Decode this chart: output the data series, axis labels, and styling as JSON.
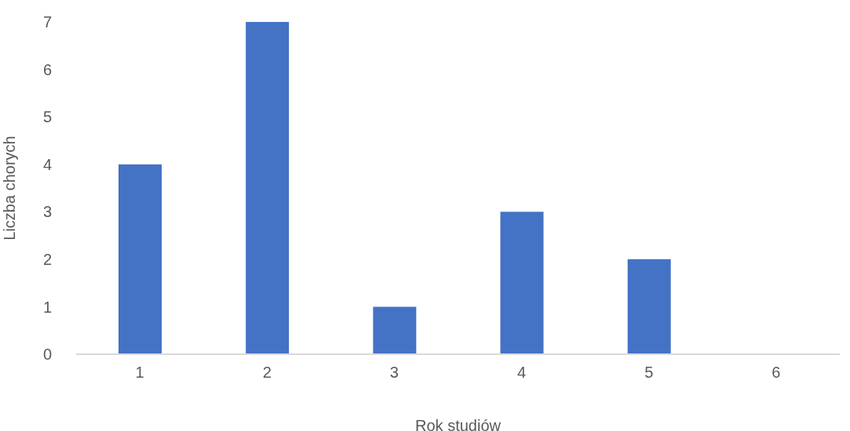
{
  "chart_data": {
    "type": "bar",
    "xlabel": "Rok studiów",
    "ylabel": "Liczba chorych",
    "categories": [
      "1",
      "2",
      "3",
      "4",
      "5",
      "6"
    ],
    "values": [
      4,
      7,
      1,
      3,
      2,
      0
    ],
    "color": "#4472c4",
    "ylim": [
      0,
      7
    ],
    "yticks": [
      0,
      1,
      2,
      3,
      4,
      5,
      6,
      7
    ],
    "grid": false
  }
}
